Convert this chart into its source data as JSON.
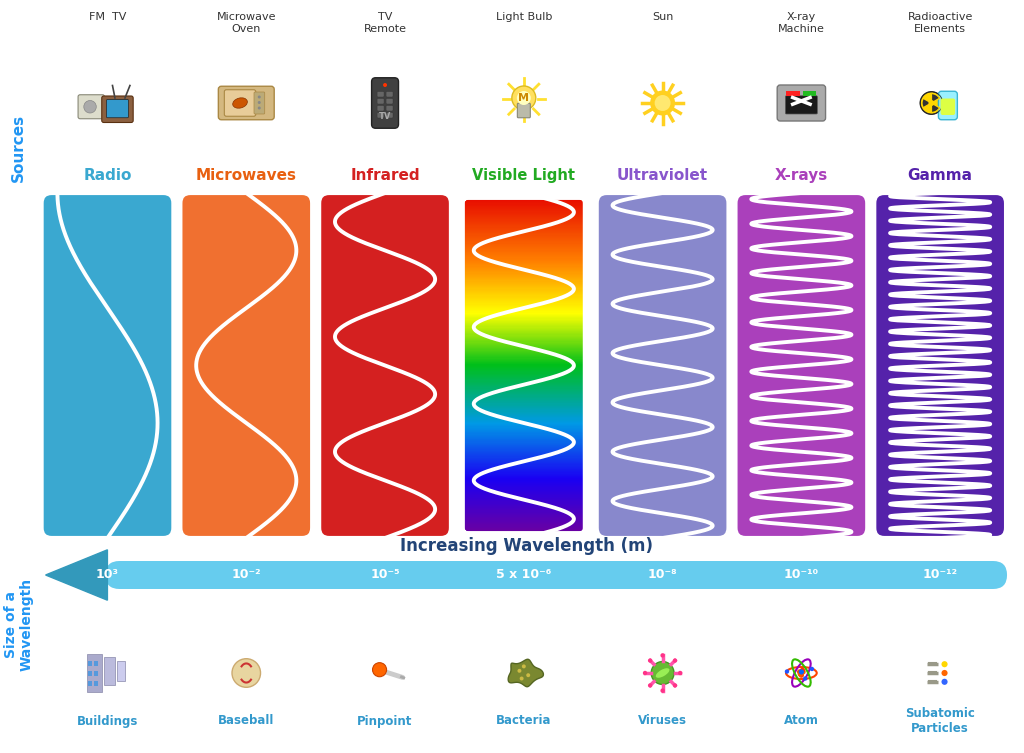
{
  "bg_color": "#ffffff",
  "title_sources_color": "#2196F3",
  "title_wavelength_label": "Increasing Wavelength (m)",
  "title_size_label": "Size of a\nWavelength",
  "sections": [
    {
      "name": "Radio",
      "color": "#3aA8D0",
      "wave_cycles": 0.75,
      "label_color": "#3aA8D0"
    },
    {
      "name": "Microwaves",
      "color": "#F07030",
      "wave_cycles": 1.5,
      "label_color": "#E86010"
    },
    {
      "name": "Infrared",
      "color": "#D42020",
      "wave_cycles": 3.0,
      "label_color": "#D42020"
    },
    {
      "name": "Visible Light",
      "color": "rainbow",
      "wave_cycles": 4.5,
      "label_color": "#22AA22"
    },
    {
      "name": "Ultraviolet",
      "color": "#8888CC",
      "wave_cycles": 7.0,
      "label_color": "#8855CC"
    },
    {
      "name": "X-rays",
      "color": "#AA40BB",
      "wave_cycles": 14.0,
      "label_color": "#AA40BB"
    },
    {
      "name": "Gamma",
      "color": "#5522AA",
      "wave_cycles": 28.0,
      "label_color": "#5522AA"
    }
  ],
  "source_labels": [
    "FM  TV",
    "Microwave\nOven",
    "TV\nRemote",
    "Light Bulb",
    "Sun",
    "X-ray\nMachine",
    "Radioactive\nElements"
  ],
  "wavelengths_display": [
    "10³",
    "10⁻²",
    "10⁻⁵",
    "5 x 10⁻⁶",
    "10⁻⁸",
    "10⁻¹⁰",
    "10⁻¹²"
  ],
  "size_labels": [
    "Buildings",
    "Baseball",
    "Pinpoint",
    "Bacteria",
    "Viruses",
    "Atom",
    "Subatomic\nParticles"
  ],
  "arrow_color": "#66CCEE",
  "arrow_tip_color": "#3399BB",
  "sources_label": "Sources",
  "size_label": "Size of a\nWavelength"
}
